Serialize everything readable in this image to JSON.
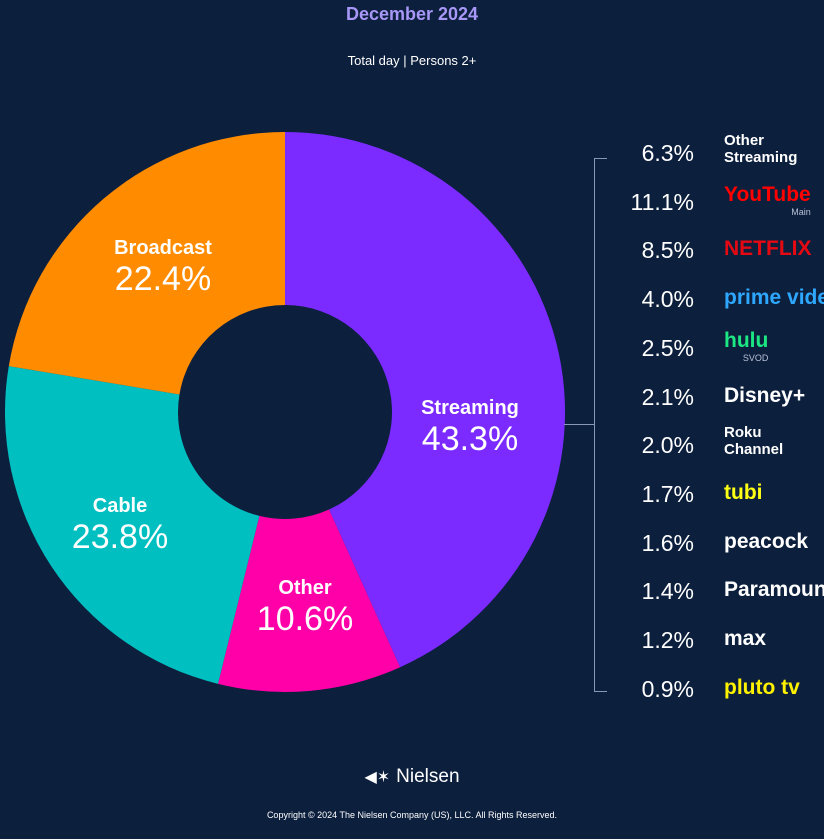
{
  "header": {
    "title": "December 2024",
    "subtitle": "Total day | Persons 2+"
  },
  "chart_data": {
    "type": "pie",
    "title": "December 2024",
    "subtitle": "Total day | Persons 2+",
    "categories": [
      "Streaming",
      "Other",
      "Cable",
      "Broadcast"
    ],
    "values": [
      43.3,
      10.6,
      23.8,
      22.4
    ],
    "value_labels": [
      "43.3%",
      "10.6%",
      "23.8%",
      "22.4%"
    ],
    "colors": [
      "#7b2bff",
      "#ff00a8",
      "#00bfc0",
      "#ff8b00"
    ],
    "style": "donut",
    "streaming_breakdown": {
      "services": [
        {
          "name": "Other Streaming",
          "display": "Other\nStreaming",
          "value": 6.3,
          "label": "6.3%",
          "color": "#ffffff"
        },
        {
          "name": "YouTube",
          "sub": "Main",
          "value": 11.1,
          "label": "11.1%",
          "color": "#ff0000"
        },
        {
          "name": "NETFLIX",
          "value": 8.5,
          "label": "8.5%",
          "color": "#e50914"
        },
        {
          "name": "prime video",
          "value": 4.0,
          "label": "4.0%",
          "color": "#2ea8ff"
        },
        {
          "name": "hulu",
          "sub": "SVOD",
          "value": 2.5,
          "label": "2.5%",
          "color": "#1ce783"
        },
        {
          "name": "Disney+",
          "value": 2.1,
          "label": "2.1%",
          "color": "#ffffff"
        },
        {
          "name": "Roku Channel",
          "display": "Roku\nChannel",
          "value": 2.0,
          "label": "2.0%",
          "color": "#ffffff"
        },
        {
          "name": "tubi",
          "value": 1.7,
          "label": "1.7%",
          "color": "#ffff13"
        },
        {
          "name": "peacock",
          "value": 1.6,
          "label": "1.6%",
          "color": "#ffffff"
        },
        {
          "name": "Paramount+",
          "value": 1.4,
          "label": "1.4%",
          "color": "#ffffff"
        },
        {
          "name": "max",
          "value": 1.2,
          "label": "1.2%",
          "color": "#ffffff"
        },
        {
          "name": "pluto tv",
          "value": 0.9,
          "label": "0.9%",
          "color": "#fff200"
        }
      ]
    }
  },
  "footer": {
    "brand": "Nielsen",
    "copyright": "Copyright © 2024 The Nielsen Company (US), LLC. All Rights Reserved."
  },
  "colors": {
    "background": "#0c1f3d",
    "title": "#a797f6"
  }
}
